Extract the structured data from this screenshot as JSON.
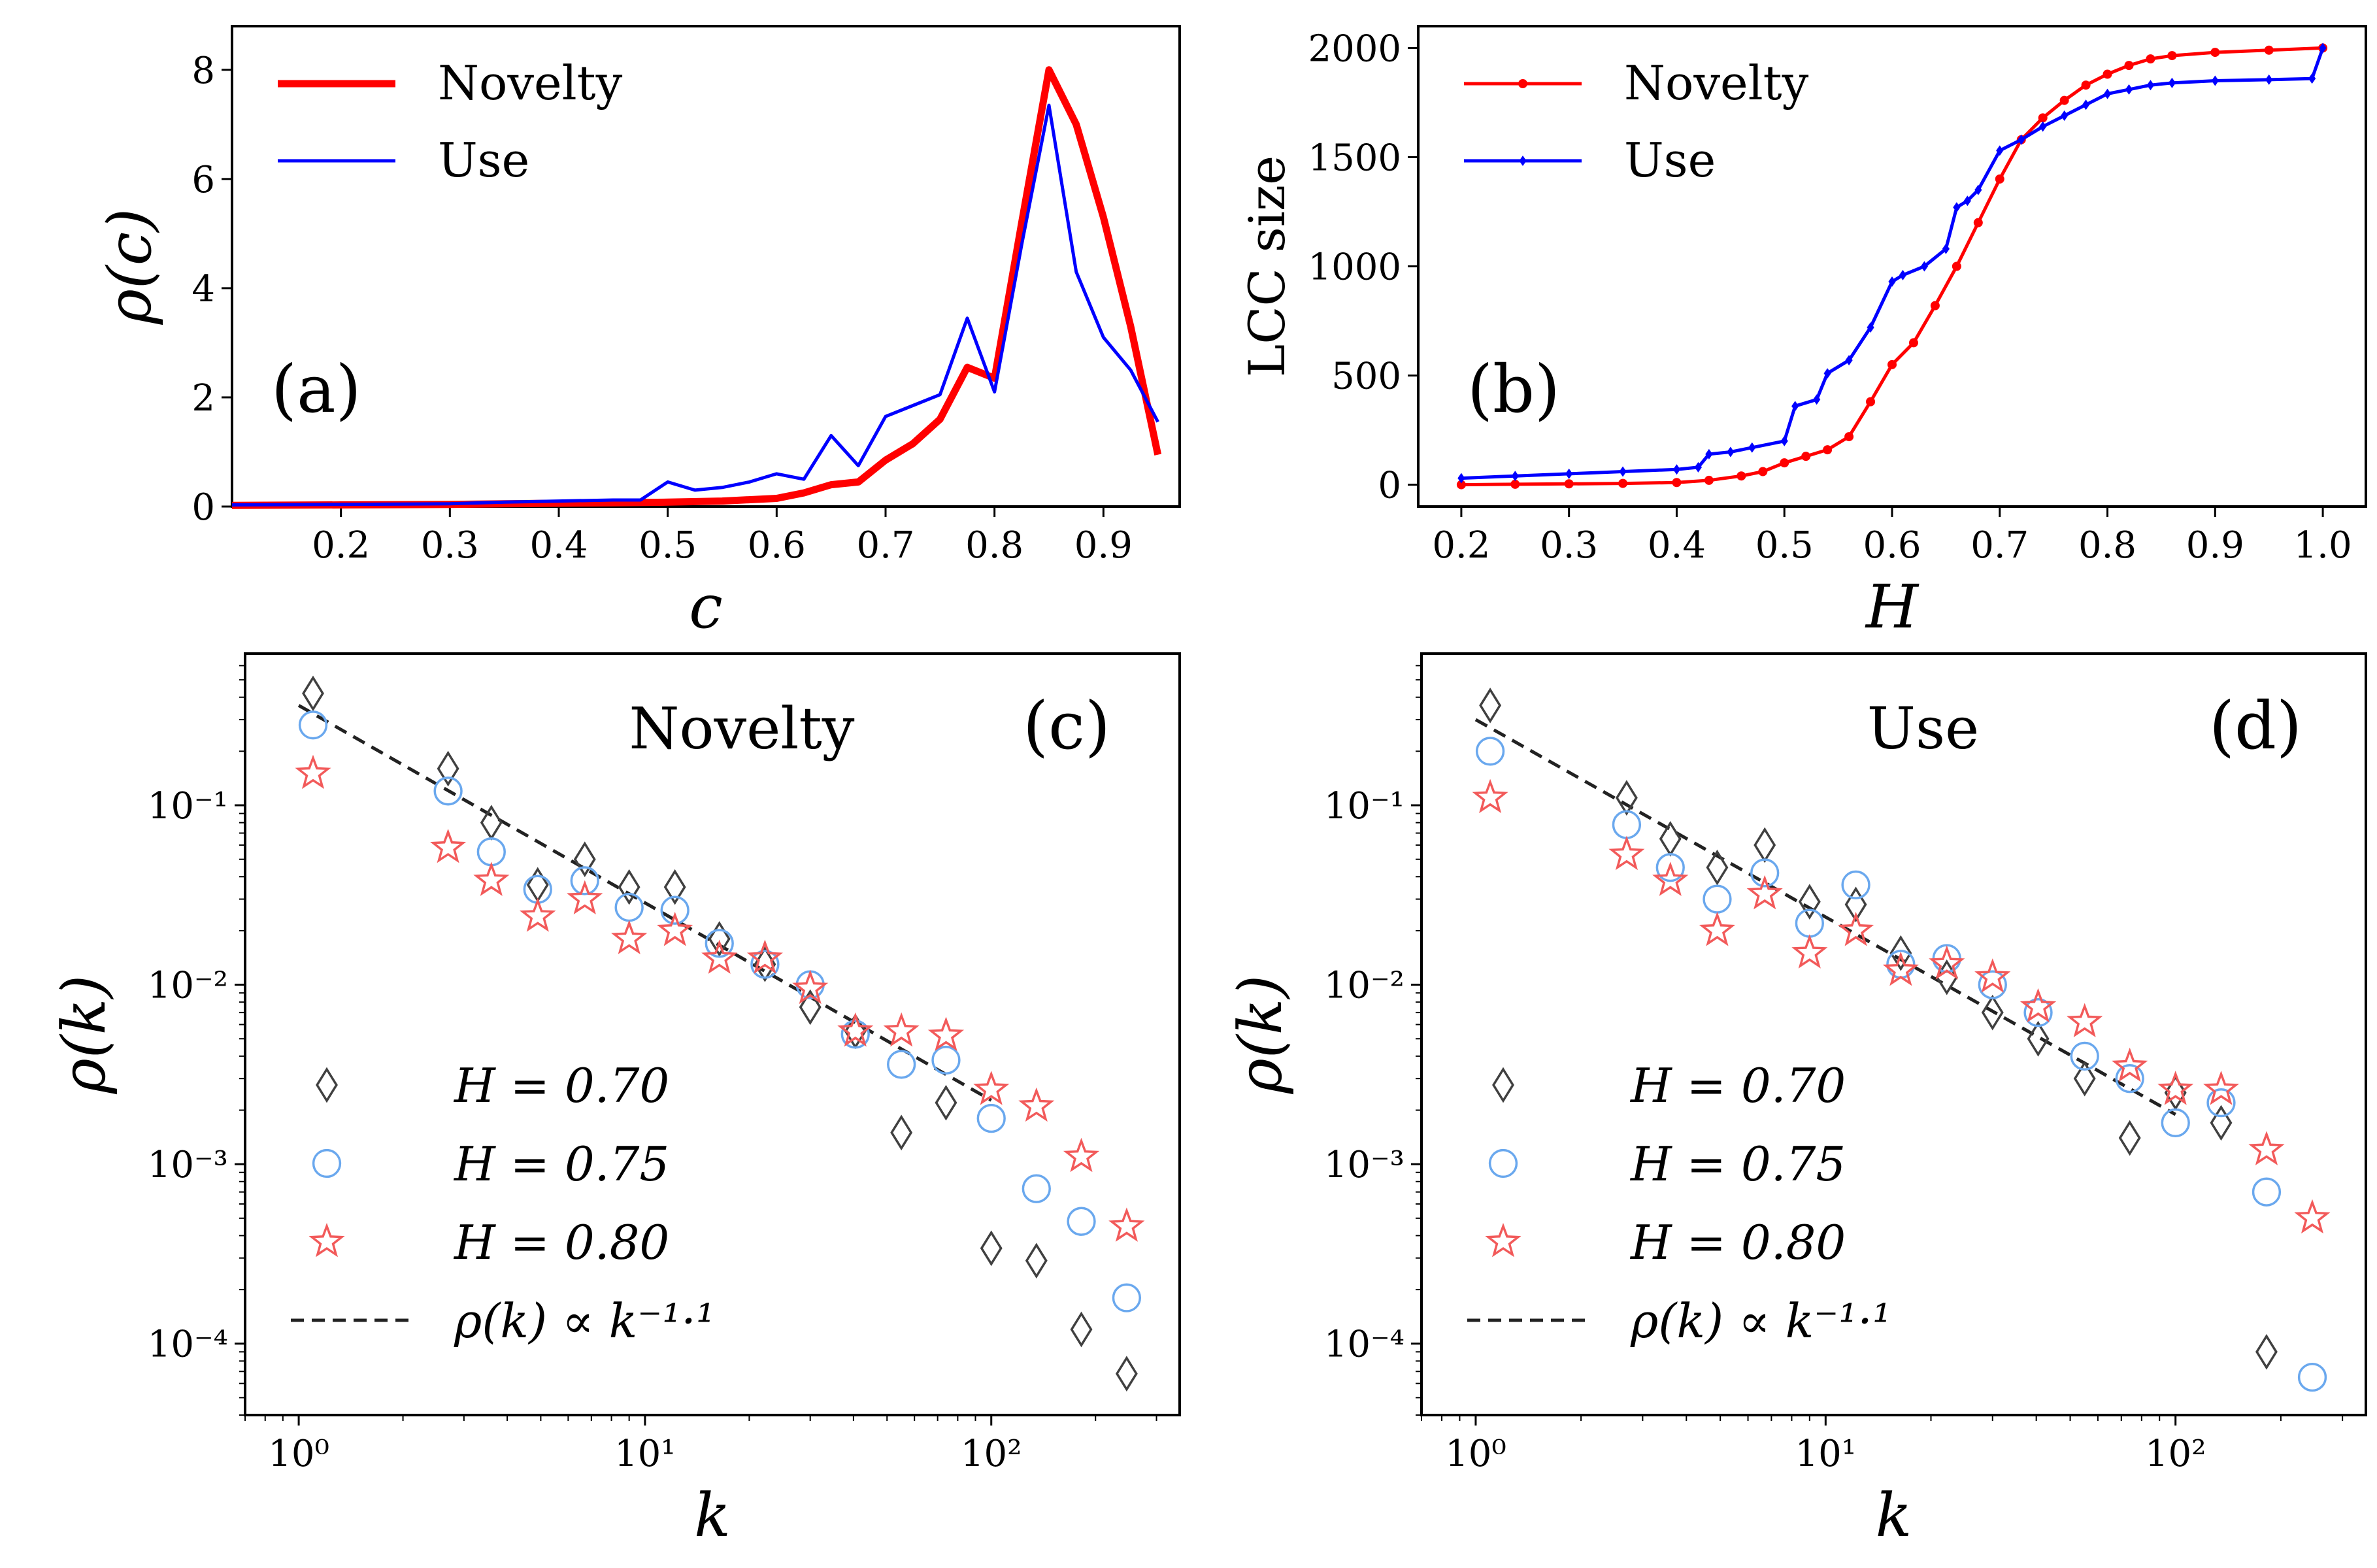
{
  "chart_data": [
    {
      "panel": "a",
      "type": "line",
      "panel_label": "(a)",
      "xlabel": "c",
      "ylabel": "ρ(c)",
      "xlim": [
        0.1,
        0.97
      ],
      "ylim": [
        0,
        8.8
      ],
      "xticks": [
        0.2,
        0.3,
        0.4,
        0.5,
        0.6,
        0.7,
        0.8,
        0.9
      ],
      "xtick_labels": [
        "0.2",
        "0.3",
        "0.4",
        "0.5",
        "0.6",
        "0.7",
        "0.8",
        "0.9"
      ],
      "yticks": [
        0,
        2,
        4,
        6,
        8
      ],
      "ytick_labels": [
        "0",
        "2",
        "4",
        "6",
        "8"
      ],
      "legend_position": "top-left",
      "series": [
        {
          "name": "Novelty",
          "color": "#ff0000",
          "x": [
            0.1,
            0.2,
            0.3,
            0.35,
            0.4,
            0.45,
            0.5,
            0.55,
            0.6,
            0.625,
            0.65,
            0.675,
            0.7,
            0.725,
            0.75,
            0.775,
            0.8,
            0.825,
            0.85,
            0.875,
            0.9,
            0.925,
            0.95
          ],
          "y": [
            0.02,
            0.03,
            0.04,
            0.05,
            0.06,
            0.07,
            0.08,
            0.1,
            0.15,
            0.25,
            0.4,
            0.45,
            0.85,
            1.15,
            1.6,
            2.55,
            2.35,
            5.2,
            8.0,
            7.0,
            5.3,
            3.3,
            0.95
          ]
        },
        {
          "name": "Use",
          "color": "#0000ff",
          "x": [
            0.1,
            0.2,
            0.3,
            0.35,
            0.4,
            0.45,
            0.475,
            0.5,
            0.525,
            0.55,
            0.575,
            0.6,
            0.625,
            0.65,
            0.675,
            0.7,
            0.725,
            0.75,
            0.775,
            0.8,
            0.825,
            0.85,
            0.875,
            0.9,
            0.925,
            0.95
          ],
          "y": [
            0.03,
            0.04,
            0.05,
            0.08,
            0.1,
            0.12,
            0.12,
            0.45,
            0.3,
            0.35,
            0.45,
            0.6,
            0.5,
            1.3,
            0.75,
            1.65,
            1.85,
            2.05,
            3.45,
            2.1,
            4.8,
            7.35,
            4.3,
            3.1,
            2.5,
            1.55
          ]
        }
      ]
    },
    {
      "panel": "b",
      "type": "line",
      "panel_label": "(b)",
      "xlabel": "H",
      "ylabel": "LCC size",
      "xlim": [
        0.16,
        1.04
      ],
      "ylim": [
        -100,
        2100
      ],
      "xticks": [
        0.2,
        0.3,
        0.4,
        0.5,
        0.6,
        0.7,
        0.8,
        0.9,
        1.0
      ],
      "xtick_labels": [
        "0.2",
        "0.3",
        "0.4",
        "0.5",
        "0.6",
        "0.7",
        "0.8",
        "0.9",
        "1.0"
      ],
      "yticks": [
        0,
        500,
        1000,
        1500,
        2000
      ],
      "ytick_labels": [
        "0",
        "500",
        "1000",
        "1500",
        "2000"
      ],
      "legend_position": "top-left",
      "series": [
        {
          "name": "Novelty",
          "color": "#ff0000",
          "x": [
            0.2,
            0.25,
            0.3,
            0.35,
            0.4,
            0.43,
            0.46,
            0.48,
            0.5,
            0.52,
            0.54,
            0.56,
            0.58,
            0.6,
            0.62,
            0.64,
            0.66,
            0.68,
            0.7,
            0.72,
            0.74,
            0.76,
            0.78,
            0.8,
            0.82,
            0.84,
            0.86,
            0.9,
            0.95,
            1.0
          ],
          "y": [
            0,
            2,
            4,
            6,
            10,
            20,
            40,
            60,
            100,
            130,
            160,
            220,
            380,
            550,
            650,
            820,
            1000,
            1200,
            1400,
            1580,
            1680,
            1760,
            1830,
            1880,
            1920,
            1950,
            1965,
            1980,
            1990,
            2000
          ]
        },
        {
          "name": "Use",
          "color": "#0000ff",
          "x": [
            0.2,
            0.25,
            0.3,
            0.35,
            0.4,
            0.42,
            0.43,
            0.45,
            0.47,
            0.5,
            0.51,
            0.53,
            0.54,
            0.56,
            0.58,
            0.6,
            0.61,
            0.63,
            0.65,
            0.66,
            0.67,
            0.68,
            0.7,
            0.72,
            0.74,
            0.76,
            0.78,
            0.8,
            0.82,
            0.84,
            0.86,
            0.9,
            0.95,
            0.99,
            1.0
          ],
          "y": [
            30,
            40,
            50,
            60,
            70,
            80,
            140,
            150,
            170,
            200,
            360,
            390,
            510,
            570,
            720,
            930,
            960,
            1000,
            1080,
            1270,
            1300,
            1350,
            1530,
            1580,
            1640,
            1690,
            1740,
            1790,
            1810,
            1830,
            1840,
            1850,
            1855,
            1860,
            2000
          ]
        }
      ]
    },
    {
      "panel": "c",
      "type": "scatter",
      "panel_label": "(c)",
      "title": "Novelty",
      "xlabel": "k",
      "ylabel": "ρ(k)",
      "xscale": "log",
      "yscale": "log",
      "xlim": [
        0.7,
        350
      ],
      "ylim": [
        4e-05,
        0.7
      ],
      "xticks": [
        1,
        10,
        100
      ],
      "xtick_labels": [
        "10⁰",
        "10¹",
        "10²"
      ],
      "yticks": [
        0.0001,
        0.001,
        0.01,
        0.1
      ],
      "ytick_labels": [
        "10⁻⁴",
        "10⁻³",
        "10⁻²",
        "10⁻¹"
      ],
      "legend_position": "bottom-left",
      "series": [
        {
          "name": "H = 0.70",
          "marker": "diamond",
          "color": "#404040",
          "x": [
            1.1,
            2.7,
            3.6,
            4.9,
            6.7,
            9.0,
            12.2,
            16.4,
            22.2,
            30,
            40.5,
            55,
            74,
            100,
            135,
            182,
            246
          ],
          "y": [
            0.42,
            0.16,
            0.08,
            0.036,
            0.05,
            0.035,
            0.035,
            0.018,
            0.013,
            0.0075,
            0.0055,
            0.0015,
            0.0022,
            0.00034,
            0.00029,
            0.00012,
            6.8e-05
          ]
        },
        {
          "name": "H = 0.75",
          "marker": "circle",
          "color": "#6aa8ee",
          "x": [
            1.1,
            2.7,
            3.6,
            4.9,
            6.7,
            9.0,
            12.2,
            16.4,
            22.2,
            30,
            40.5,
            55,
            74,
            100,
            135,
            182,
            246
          ],
          "y": [
            0.28,
            0.12,
            0.055,
            0.034,
            0.038,
            0.027,
            0.026,
            0.017,
            0.013,
            0.01,
            0.0053,
            0.0036,
            0.0038,
            0.0018,
            0.00073,
            0.00048,
            0.00018
          ]
        },
        {
          "name": "H = 0.80",
          "marker": "star",
          "color": "#f25a5a",
          "x": [
            1.1,
            2.7,
            3.6,
            4.9,
            6.7,
            9.0,
            12.2,
            16.4,
            22.2,
            30,
            40.5,
            55,
            74,
            100,
            135,
            182,
            246
          ],
          "y": [
            0.15,
            0.058,
            0.038,
            0.024,
            0.03,
            0.018,
            0.02,
            0.014,
            0.014,
            0.0095,
            0.0055,
            0.0055,
            0.0052,
            0.0026,
            0.0021,
            0.0011,
            0.00045
          ]
        }
      ],
      "fit": {
        "name": "ρ(k) ∝ k⁻¹·¹",
        "exponent": -1.1,
        "x_range": [
          1.0,
          100
        ],
        "y_at_1": 0.36,
        "style": "dashed",
        "color": "#222222"
      }
    },
    {
      "panel": "d",
      "type": "scatter",
      "panel_label": "(d)",
      "title": "Use",
      "xlabel": "k",
      "ylabel": "ρ(k)",
      "xscale": "log",
      "yscale": "log",
      "xlim": [
        0.7,
        350
      ],
      "ylim": [
        4e-05,
        0.7
      ],
      "xticks": [
        1,
        10,
        100
      ],
      "xtick_labels": [
        "10⁰",
        "10¹",
        "10²"
      ],
      "yticks": [
        0.0001,
        0.001,
        0.01,
        0.1
      ],
      "ytick_labels": [
        "10⁻⁴",
        "10⁻³",
        "10⁻²",
        "10⁻¹"
      ],
      "legend_position": "bottom-left",
      "series": [
        {
          "name": "H = 0.70",
          "marker": "diamond",
          "color": "#404040",
          "x": [
            1.1,
            2.7,
            3.6,
            4.9,
            6.7,
            9.0,
            12.2,
            16.4,
            22.2,
            30,
            40.5,
            55,
            74,
            100,
            135,
            182
          ],
          "y": [
            0.36,
            0.11,
            0.065,
            0.045,
            0.06,
            0.029,
            0.028,
            0.015,
            0.011,
            0.007,
            0.005,
            0.003,
            0.0014,
            0.0025,
            0.0017,
            9e-05
          ]
        },
        {
          "name": "H = 0.75",
          "marker": "circle",
          "color": "#6aa8ee",
          "x": [
            1.1,
            2.7,
            3.6,
            4.9,
            6.7,
            9.0,
            12.2,
            16.4,
            22.2,
            30,
            40.5,
            55,
            74,
            100,
            135,
            182,
            246
          ],
          "y": [
            0.2,
            0.078,
            0.045,
            0.03,
            0.042,
            0.022,
            0.036,
            0.013,
            0.014,
            0.01,
            0.007,
            0.004,
            0.003,
            0.0017,
            0.0022,
            0.0007,
            6.5e-05
          ]
        },
        {
          "name": "H = 0.80",
          "marker": "star",
          "color": "#f25a5a",
          "x": [
            1.1,
            2.7,
            3.6,
            4.9,
            6.7,
            9.0,
            12.2,
            16.4,
            22.2,
            30,
            40.5,
            55,
            74,
            100,
            135,
            182,
            246
          ],
          "y": [
            0.11,
            0.053,
            0.038,
            0.02,
            0.032,
            0.015,
            0.02,
            0.012,
            0.013,
            0.011,
            0.0075,
            0.0062,
            0.0035,
            0.0026,
            0.0026,
            0.0012,
            0.0005
          ]
        }
      ],
      "fit": {
        "name": "ρ(k) ∝ k⁻¹·¹",
        "exponent": -1.1,
        "x_range": [
          1.0,
          100
        ],
        "y_at_1": 0.3,
        "style": "dashed",
        "color": "#222222"
      }
    }
  ]
}
